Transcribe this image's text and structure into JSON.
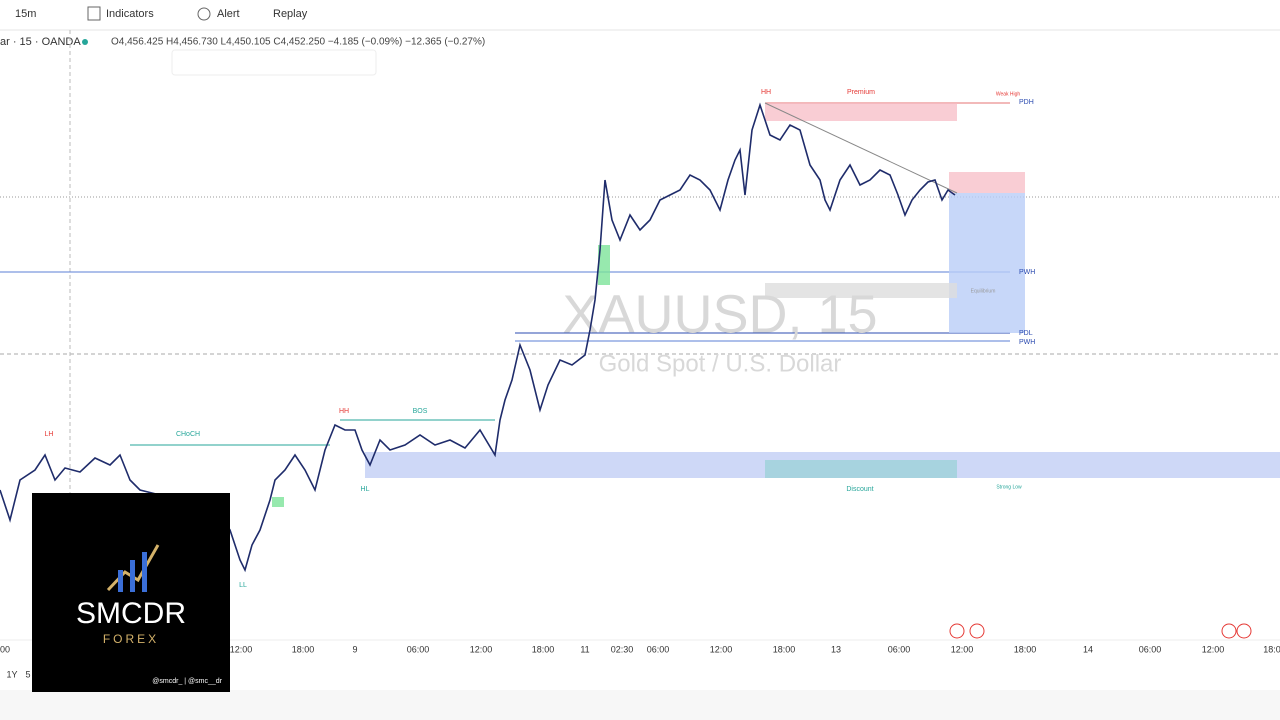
{
  "toolbar": {
    "interval": "15m",
    "indicators": "Indicators",
    "alert": "Alert",
    "replay": "Replay"
  },
  "legend": {
    "symbol": "ar · 15 · OANDA",
    "ohlc": "O4,456.425 H4,456.730 L4,450.105 C4,452.250 −4.185 (−0.09%) −12.365 (−0.27%)"
  },
  "watermark": {
    "symbol": "XAUUSD, 15",
    "description": "Gold Spot / U.S. Dollar"
  },
  "annotations": {
    "hh": "HH",
    "premium": "Premium",
    "weak_high": "Weak High",
    "pdh": "PDH",
    "pwh_upper": "PWH",
    "equilibrium": "Equilibrium",
    "pdl": "PDL",
    "pwh_lower": "PWH",
    "discount": "Discount",
    "strong_low": "Strong Low",
    "lh": "LH",
    "choch": "CHoCH",
    "hh_left": "HH",
    "bos": "BOS",
    "hl": "HL",
    "ll": "LL"
  },
  "time_axis": [
    "00",
    "12:00",
    "18:00",
    "9",
    "06:00",
    "12:00",
    "18:00",
    "11",
    "02:30",
    "06:00",
    "12:00",
    "18:00",
    "13",
    "06:00",
    "12:00",
    "18:00",
    "14",
    "06:00",
    "12:00",
    "18:0"
  ],
  "range_buttons": [
    "1Y",
    "5"
  ],
  "logo": {
    "name": "SMCDR",
    "tagline": "FOREX",
    "handles": "@smcdr_ | @smc__dr"
  }
}
